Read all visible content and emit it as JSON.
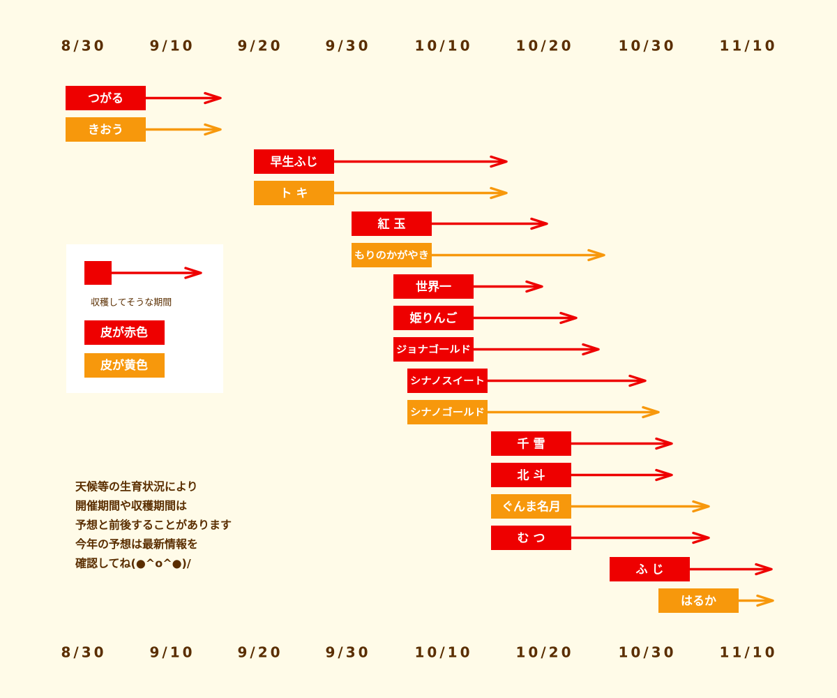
{
  "dates": [
    "8/30",
    "9/10",
    "9/20",
    "9/30",
    "10/10",
    "10/20",
    "10/30",
    "11/10"
  ],
  "items": [
    {
      "label": "つがる",
      "color": "#ee0000"
    },
    {
      "label": "きおう",
      "color": "#f7980c"
    },
    {
      "label": "早生ふじ",
      "color": "#ee0000"
    },
    {
      "label": "ト キ",
      "color": "#f7980c"
    },
    {
      "label": "紅 玉",
      "color": "#ee0000"
    },
    {
      "label": "もりのかがやき",
      "color": "#f7980c"
    },
    {
      "label": "世界一",
      "color": "#ee0000"
    },
    {
      "label": "姫りんご",
      "color": "#ee0000"
    },
    {
      "label": "ジョナゴールド",
      "color": "#ee0000"
    },
    {
      "label": "シナノスイート",
      "color": "#ee0000"
    },
    {
      "label": "シナノゴールド",
      "color": "#f7980c"
    },
    {
      "label": "千 雪",
      "color": "#ee0000"
    },
    {
      "label": "北 斗",
      "color": "#ee0000"
    },
    {
      "label": "ぐんま名月",
      "color": "#f7980c"
    },
    {
      "label": "む つ",
      "color": "#ee0000"
    },
    {
      "label": "ふ じ",
      "color": "#ee0000"
    },
    {
      "label": "はるか",
      "color": "#f7980c"
    }
  ],
  "legend": {
    "period": "収穫してそうな期間",
    "red": {
      "label": "皮が赤色",
      "color": "#ee0000"
    },
    "yellow": {
      "label": "皮が黄色",
      "color": "#f7980c"
    }
  },
  "note": [
    "天候等の生育状況により",
    "開催期間や収穫期間は",
    "予想と前後することがあります",
    "今年の予想は最新情報を",
    "確認してね(●^o^●)/"
  ]
}
